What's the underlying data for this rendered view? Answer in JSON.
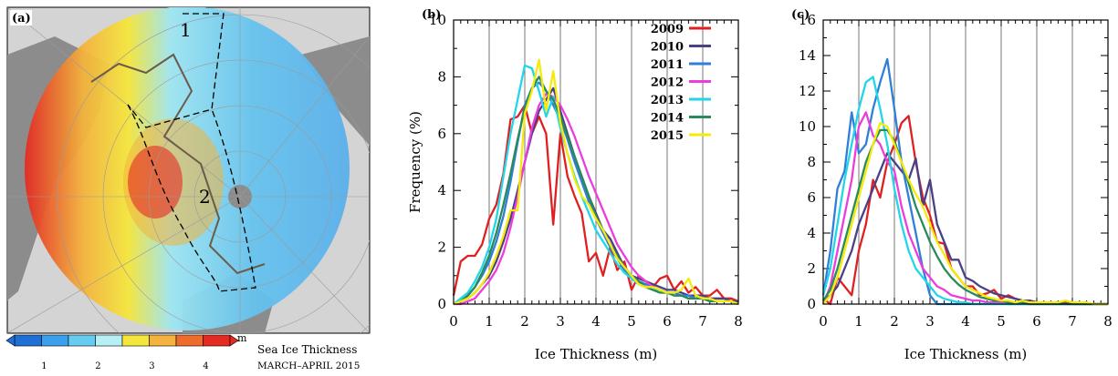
{
  "map_panel": {
    "label": "(a)",
    "region_labels": [
      "1",
      "2"
    ],
    "colorbar": {
      "unit": "m",
      "tick_labels": [
        "1",
        "2",
        "3",
        "4"
      ],
      "colors": [
        "#1f6fd6",
        "#3aa0ec",
        "#66cdf0",
        "#b6f0f4",
        "#f5e63c",
        "#f3b33c",
        "#ef6b2c",
        "#e42a23"
      ]
    },
    "caption": [
      "Sea Ice Thickness",
      "MARCH–APRIL 2015"
    ],
    "colors": {
      "land": "#8c8c8c",
      "ocean_bg": "#d4d4d4",
      "ice_low": "#5ab4ea",
      "ice_high": "#e42a23"
    }
  },
  "chart_data": [
    {
      "type": "line",
      "panel_label": "(b)",
      "xlabel": "Ice Thickness (m)",
      "ylabel": "Frequency (%)",
      "xlim": [
        0,
        8
      ],
      "ylim": [
        0,
        10
      ],
      "xticks": [
        "0",
        "1",
        "2",
        "3",
        "4",
        "5",
        "6",
        "7",
        "8"
      ],
      "yticks": [
        "0",
        "2",
        "4",
        "6",
        "8",
        "10"
      ],
      "grid": "vertical",
      "legend_position": "top-right",
      "x": [
        0,
        0.2,
        0.4,
        0.6,
        0.8,
        1.0,
        1.2,
        1.4,
        1.6,
        1.8,
        2.0,
        2.2,
        2.4,
        2.6,
        2.8,
        3.0,
        3.2,
        3.4,
        3.6,
        3.8,
        4.0,
        4.2,
        4.4,
        4.6,
        4.8,
        5.0,
        5.2,
        5.4,
        5.6,
        5.8,
        6.0,
        6.2,
        6.4,
        6.6,
        6.8,
        7.0,
        7.2,
        7.4,
        7.6,
        7.8,
        8.0
      ],
      "series": [
        {
          "name": "2009",
          "color": "#e02020",
          "values": [
            0.3,
            1.5,
            1.7,
            1.7,
            2.1,
            3.0,
            3.5,
            4.6,
            6.5,
            6.6,
            7.0,
            6.0,
            6.6,
            6.0,
            2.8,
            6.0,
            4.5,
            3.8,
            3.2,
            1.5,
            1.8,
            1.0,
            2.0,
            1.2,
            1.5,
            0.5,
            1.0,
            0.8,
            0.6,
            0.9,
            1.0,
            0.5,
            0.8,
            0.4,
            0.6,
            0.3,
            0.3,
            0.5,
            0.2,
            0.2,
            0.1
          ]
        },
        {
          "name": "2010",
          "color": "#4b3f86",
          "values": [
            0.0,
            0.1,
            0.2,
            0.4,
            0.7,
            1.0,
            1.5,
            2.2,
            3.0,
            4.0,
            5.0,
            6.0,
            6.8,
            7.2,
            7.6,
            6.8,
            6.0,
            5.2,
            4.5,
            3.8,
            3.2,
            2.6,
            2.3,
            1.8,
            1.3,
            1.0,
            0.9,
            0.8,
            0.7,
            0.6,
            0.5,
            0.5,
            0.4,
            0.3,
            0.3,
            0.3,
            0.2,
            0.2,
            0.2,
            0.1,
            0.1
          ]
        },
        {
          "name": "2011",
          "color": "#2f7fd8",
          "values": [
            0.0,
            0.1,
            0.3,
            0.6,
            1.0,
            1.5,
            2.2,
            3.1,
            4.3,
            5.7,
            7.0,
            7.6,
            7.8,
            7.5,
            7.0,
            6.5,
            5.8,
            5.0,
            4.3,
            3.6,
            3.0,
            2.5,
            2.0,
            1.6,
            1.2,
            1.0,
            0.8,
            0.7,
            0.6,
            0.5,
            0.4,
            0.4,
            0.3,
            0.3,
            0.2,
            0.2,
            0.2,
            0.1,
            0.1,
            0.1,
            0.0
          ]
        },
        {
          "name": "2012",
          "color": "#ec3ddc",
          "values": [
            0.0,
            0.0,
            0.1,
            0.2,
            0.5,
            0.8,
            1.2,
            1.8,
            2.7,
            3.8,
            5.0,
            6.2,
            7.0,
            7.4,
            7.3,
            7.0,
            6.5,
            5.9,
            5.2,
            4.5,
            3.9,
            3.3,
            2.7,
            2.1,
            1.7,
            1.3,
            1.0,
            0.8,
            0.6,
            0.5,
            0.4,
            0.3,
            0.3,
            0.2,
            0.2,
            0.2,
            0.1,
            0.1,
            0.1,
            0.1,
            0.0
          ]
        },
        {
          "name": "2013",
          "color": "#21d6e8",
          "values": [
            0.0,
            0.2,
            0.4,
            0.8,
            1.3,
            2.0,
            3.0,
            4.5,
            6.0,
            7.2,
            8.4,
            8.3,
            7.5,
            6.6,
            7.3,
            6.2,
            5.3,
            4.5,
            3.8,
            3.2,
            2.6,
            2.2,
            1.8,
            1.4,
            1.1,
            0.9,
            0.7,
            0.6,
            0.5,
            0.5,
            0.4,
            0.3,
            0.3,
            0.2,
            0.2,
            0.2,
            0.1,
            0.1,
            0.1,
            0.1,
            0.0
          ]
        },
        {
          "name": "2014",
          "color": "#2a8a5a",
          "values": [
            0.0,
            0.1,
            0.3,
            0.6,
            1.1,
            1.7,
            2.5,
            3.5,
            4.6,
            5.8,
            6.9,
            7.6,
            8.0,
            7.5,
            7.2,
            6.6,
            5.9,
            5.2,
            4.5,
            3.8,
            3.1,
            2.6,
            2.1,
            1.7,
            1.3,
            1.0,
            0.8,
            0.6,
            0.5,
            0.4,
            0.4,
            0.3,
            0.3,
            0.2,
            0.2,
            0.2,
            0.1,
            0.1,
            0.1,
            0.1,
            0.0
          ]
        },
        {
          "name": "2015",
          "color": "#f5ea0a",
          "values": [
            0.0,
            0.1,
            0.2,
            0.4,
            0.7,
            1.1,
            1.7,
            2.4,
            3.3,
            3.3,
            6.7,
            7.5,
            8.6,
            6.8,
            8.2,
            6.4,
            5.3,
            4.4,
            3.8,
            3.5,
            3.0,
            2.6,
            2.1,
            1.6,
            1.3,
            1.0,
            0.7,
            0.6,
            0.6,
            0.5,
            0.4,
            0.4,
            0.5,
            0.9,
            0.3,
            0.2,
            0.2,
            0.1,
            0.1,
            0.1,
            0.0
          ]
        }
      ]
    },
    {
      "type": "line",
      "panel_label": "(c)",
      "xlabel": "Ice Thickness (m)",
      "ylabel": "",
      "xlim": [
        0,
        8
      ],
      "ylim": [
        0,
        16
      ],
      "xticks": [
        "0",
        "1",
        "2",
        "3",
        "4",
        "5",
        "6",
        "7",
        "8"
      ],
      "yticks": [
        "0",
        "2",
        "4",
        "6",
        "8",
        "10",
        "12",
        "14",
        "16"
      ],
      "grid": "vertical",
      "x": [
        0,
        0.2,
        0.4,
        0.6,
        0.8,
        1.0,
        1.2,
        1.4,
        1.6,
        1.8,
        2.0,
        2.2,
        2.4,
        2.6,
        2.8,
        3.0,
        3.2,
        3.4,
        3.6,
        3.8,
        4.0,
        4.2,
        4.4,
        4.6,
        4.8,
        5.0,
        5.2,
        5.4,
        5.6,
        5.8,
        6.0,
        6.2,
        6.4,
        6.6,
        6.8,
        7.0,
        7.2,
        7.4,
        7.6,
        7.8,
        8.0
      ],
      "series": [
        {
          "name": "2009",
          "color": "#e02020",
          "values": [
            0.3,
            0.0,
            1.5,
            1.0,
            0.5,
            3.0,
            4.5,
            7.0,
            6.0,
            8.0,
            9.0,
            10.2,
            10.6,
            8.0,
            6.0,
            5.0,
            3.5,
            3.4,
            2.0,
            1.5,
            1.0,
            1.0,
            0.5,
            0.6,
            0.8,
            0.3,
            0.5,
            0.3,
            0.2,
            0.2,
            0.1,
            0.1,
            0.1,
            0.1,
            0.1,
            0.0,
            0.0,
            0.0,
            0.0,
            0.0,
            0.0
          ]
        },
        {
          "name": "2010",
          "color": "#4b3f86",
          "values": [
            0.2,
            0.5,
            1.0,
            2.0,
            3.0,
            4.5,
            5.5,
            6.5,
            7.5,
            8.5,
            8.0,
            7.5,
            7.0,
            8.2,
            5.5,
            7.0,
            4.5,
            3.5,
            2.5,
            2.5,
            1.5,
            1.3,
            1.0,
            0.8,
            0.6,
            0.5,
            0.4,
            0.3,
            0.2,
            0.2,
            0.1,
            0.1,
            0.1,
            0.1,
            0.0,
            0.0,
            0.0,
            0.0,
            0.0,
            0.0,
            0.0
          ]
        },
        {
          "name": "2011",
          "color": "#2f7fd8",
          "values": [
            0.5,
            3.0,
            6.5,
            7.5,
            10.8,
            8.5,
            9.0,
            11.0,
            12.5,
            13.8,
            11.0,
            8.0,
            6.0,
            4.0,
            2.0,
            0.5,
            0.0,
            0.0,
            0.0,
            0.0,
            0.0,
            0.0,
            0.0,
            0.0,
            0.0,
            0.0,
            0.0,
            0.0,
            0.0,
            0.0,
            0.0,
            0.0,
            0.0,
            0.0,
            0.0,
            0.0,
            0.0,
            0.0,
            0.0,
            0.0,
            0.0
          ]
        },
        {
          "name": "2012",
          "color": "#ec3ddc",
          "values": [
            0.0,
            1.0,
            3.0,
            5.0,
            7.0,
            10.0,
            10.8,
            9.5,
            9.0,
            8.0,
            7.5,
            5.5,
            4.0,
            3.0,
            2.0,
            1.5,
            1.0,
            0.8,
            0.5,
            0.4,
            0.3,
            0.2,
            0.2,
            0.1,
            0.1,
            0.1,
            0.0,
            0.0,
            0.0,
            0.0,
            0.0,
            0.0,
            0.0,
            0.0,
            0.0,
            0.0,
            0.0,
            0.0,
            0.0,
            0.0,
            0.0
          ]
        },
        {
          "name": "2013",
          "color": "#21d6e8",
          "values": [
            0.5,
            2.0,
            4.5,
            7.0,
            9.0,
            11.0,
            12.5,
            12.8,
            11.0,
            9.0,
            6.5,
            4.5,
            3.0,
            2.0,
            1.5,
            1.0,
            0.5,
            0.3,
            0.2,
            0.1,
            0.1,
            0.0,
            0.0,
            0.0,
            0.0,
            0.0,
            0.0,
            0.0,
            0.0,
            0.0,
            0.0,
            0.0,
            0.0,
            0.0,
            0.0,
            0.0,
            0.0,
            0.0,
            0.0,
            0.0,
            0.0
          ]
        },
        {
          "name": "2014",
          "color": "#2a8a5a",
          "values": [
            0.2,
            0.8,
            2.0,
            3.5,
            5.0,
            6.5,
            8.0,
            9.0,
            9.8,
            9.8,
            9.2,
            8.0,
            6.8,
            5.5,
            4.5,
            3.5,
            2.7,
            2.0,
            1.5,
            1.1,
            0.8,
            0.6,
            0.4,
            0.3,
            0.2,
            0.2,
            0.1,
            0.1,
            0.1,
            0.0,
            0.0,
            0.0,
            0.0,
            0.0,
            0.0,
            0.0,
            0.0,
            0.0,
            0.0,
            0.0,
            0.0
          ]
        },
        {
          "name": "2015",
          "color": "#f5ea0a",
          "values": [
            0.0,
            0.5,
            1.5,
            3.0,
            4.5,
            6.0,
            7.5,
            9.0,
            10.2,
            10.0,
            9.0,
            8.0,
            7.0,
            6.2,
            5.5,
            4.5,
            3.5,
            2.8,
            2.0,
            1.5,
            1.0,
            0.8,
            0.6,
            0.4,
            0.3,
            0.2,
            0.2,
            0.1,
            0.2,
            0.1,
            0.1,
            0.1,
            0.1,
            0.1,
            0.2,
            0.1,
            0.1,
            0.1,
            0.0,
            0.0,
            0.0
          ]
        }
      ]
    }
  ]
}
